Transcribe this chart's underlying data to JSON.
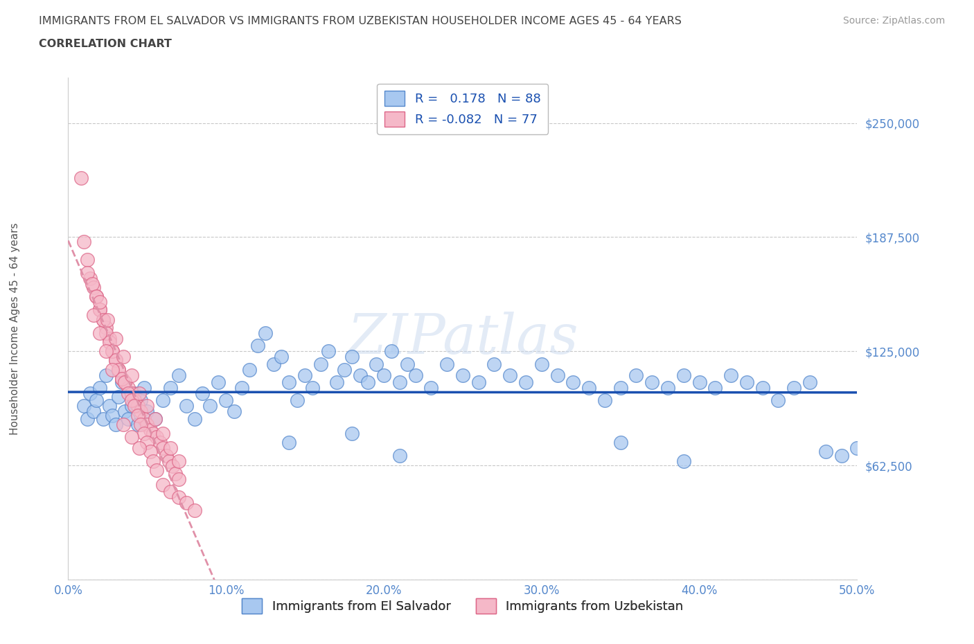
{
  "title_line1": "IMMIGRANTS FROM EL SALVADOR VS IMMIGRANTS FROM UZBEKISTAN HOUSEHOLDER INCOME AGES 45 - 64 YEARS",
  "title_line2": "CORRELATION CHART",
  "source": "Source: ZipAtlas.com",
  "ylabel": "Householder Income Ages 45 - 64 years",
  "xlim": [
    0.0,
    0.5
  ],
  "ylim": [
    0,
    275000
  ],
  "yticks": [
    0,
    62500,
    125000,
    187500,
    250000
  ],
  "ytick_labels": [
    "",
    "$62,500",
    "$125,000",
    "$187,500",
    "$250,000"
  ],
  "xticks": [
    0.0,
    0.1,
    0.2,
    0.3,
    0.4,
    0.5
  ],
  "xtick_labels": [
    "0.0%",
    "10.0%",
    "20.0%",
    "30.0%",
    "40.0%",
    "50.0%"
  ],
  "el_salvador_color": "#a8c8f0",
  "uzbekistan_color": "#f5b8c8",
  "el_salvador_edge": "#5588cc",
  "uzbekistan_edge": "#dd6688",
  "trend_salvador_color": "#1a50b0",
  "trend_uzbekistan_color": "#e090a8",
  "R_salvador": 0.178,
  "N_salvador": 88,
  "R_uzbekistan": -0.082,
  "N_uzbekistan": 77,
  "legend_label_1": "Immigrants from El Salvador",
  "legend_label_2": "Immigrants from Uzbekistan",
  "watermark": "ZIPatlas",
  "grid_color": "#c8c8c8",
  "background_color": "#ffffff",
  "title_color": "#444444",
  "axis_label_color": "#555555",
  "tick_label_color": "#5588cc",
  "source_color": "#999999",
  "el_salvador_x": [
    0.01,
    0.012,
    0.014,
    0.016,
    0.018,
    0.02,
    0.022,
    0.024,
    0.026,
    0.028,
    0.03,
    0.032,
    0.034,
    0.036,
    0.038,
    0.04,
    0.042,
    0.044,
    0.046,
    0.048,
    0.05,
    0.055,
    0.06,
    0.065,
    0.07,
    0.075,
    0.08,
    0.085,
    0.09,
    0.095,
    0.1,
    0.105,
    0.11,
    0.115,
    0.12,
    0.125,
    0.13,
    0.135,
    0.14,
    0.145,
    0.15,
    0.155,
    0.16,
    0.165,
    0.17,
    0.175,
    0.18,
    0.185,
    0.19,
    0.195,
    0.2,
    0.205,
    0.21,
    0.215,
    0.22,
    0.23,
    0.24,
    0.25,
    0.26,
    0.27,
    0.28,
    0.29,
    0.3,
    0.31,
    0.32,
    0.33,
    0.34,
    0.35,
    0.36,
    0.37,
    0.38,
    0.39,
    0.4,
    0.41,
    0.42,
    0.43,
    0.44,
    0.45,
    0.46,
    0.47,
    0.48,
    0.49,
    0.5,
    0.21,
    0.35,
    0.18,
    0.14,
    0.39
  ],
  "el_salvador_y": [
    95000,
    88000,
    102000,
    92000,
    98000,
    105000,
    88000,
    112000,
    95000,
    90000,
    85000,
    100000,
    108000,
    92000,
    88000,
    95000,
    102000,
    85000,
    98000,
    105000,
    92000,
    88000,
    98000,
    105000,
    112000,
    95000,
    88000,
    102000,
    95000,
    108000,
    98000,
    92000,
    105000,
    115000,
    128000,
    135000,
    118000,
    122000,
    108000,
    98000,
    112000,
    105000,
    118000,
    125000,
    108000,
    115000,
    122000,
    112000,
    108000,
    118000,
    112000,
    125000,
    108000,
    118000,
    112000,
    105000,
    118000,
    112000,
    108000,
    118000,
    112000,
    108000,
    118000,
    112000,
    108000,
    105000,
    98000,
    105000,
    112000,
    108000,
    105000,
    112000,
    108000,
    105000,
    112000,
    108000,
    105000,
    98000,
    105000,
    108000,
    70000,
    68000,
    72000,
    68000,
    75000,
    80000,
    75000,
    65000
  ],
  "uzbekistan_x": [
    0.008,
    0.01,
    0.012,
    0.014,
    0.016,
    0.018,
    0.02,
    0.022,
    0.024,
    0.026,
    0.028,
    0.03,
    0.032,
    0.034,
    0.036,
    0.038,
    0.04,
    0.042,
    0.044,
    0.046,
    0.048,
    0.05,
    0.052,
    0.054,
    0.056,
    0.058,
    0.06,
    0.062,
    0.064,
    0.066,
    0.068,
    0.07,
    0.012,
    0.015,
    0.018,
    0.02,
    0.022,
    0.024,
    0.026,
    0.028,
    0.03,
    0.032,
    0.034,
    0.036,
    0.038,
    0.04,
    0.042,
    0.044,
    0.046,
    0.048,
    0.05,
    0.052,
    0.054,
    0.056,
    0.06,
    0.065,
    0.07,
    0.075,
    0.08,
    0.02,
    0.025,
    0.03,
    0.035,
    0.04,
    0.045,
    0.05,
    0.055,
    0.06,
    0.065,
    0.07,
    0.035,
    0.04,
    0.045,
    0.016,
    0.02,
    0.024,
    0.028
  ],
  "uzbekistan_y": [
    220000,
    185000,
    175000,
    165000,
    160000,
    155000,
    148000,
    142000,
    138000,
    132000,
    125000,
    120000,
    115000,
    110000,
    108000,
    105000,
    102000,
    98000,
    95000,
    92000,
    88000,
    85000,
    82000,
    80000,
    78000,
    75000,
    72000,
    68000,
    65000,
    62000,
    58000,
    55000,
    168000,
    162000,
    155000,
    148000,
    142000,
    135000,
    130000,
    125000,
    120000,
    115000,
    110000,
    108000,
    102000,
    98000,
    95000,
    90000,
    85000,
    80000,
    75000,
    70000,
    65000,
    60000,
    52000,
    48000,
    45000,
    42000,
    38000,
    152000,
    142000,
    132000,
    122000,
    112000,
    102000,
    95000,
    88000,
    80000,
    72000,
    65000,
    85000,
    78000,
    72000,
    145000,
    135000,
    125000,
    115000
  ]
}
